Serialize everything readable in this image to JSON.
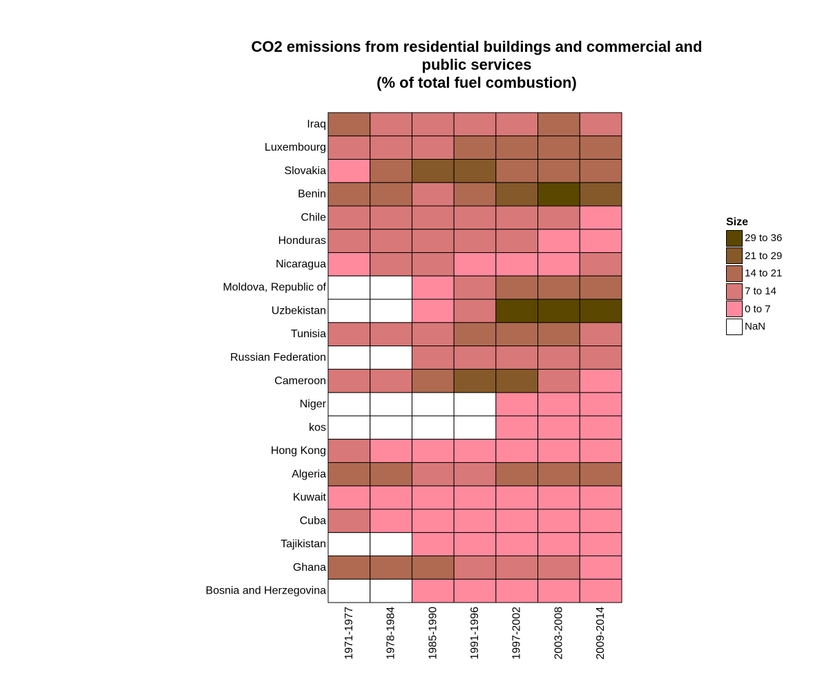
{
  "chart_data": {
    "type": "heatmap",
    "title_lines": [
      "CO2 emissions from residential buildings and commercial and",
      "public services",
      "(% of total fuel combustion)"
    ],
    "x_categories": [
      "1971-1977",
      "1978-1984",
      "1985-1990",
      "1991-1996",
      "1997-2002",
      "2003-2008",
      "2009-2014"
    ],
    "y_categories": [
      "Iraq",
      "Luxembourg",
      "Slovakia",
      "Benin",
      "Chile",
      "Honduras",
      "Nicaragua",
      "Moldova, Republic of",
      "Uzbekistan",
      "Tunisia",
      "Russian Federation",
      "Cameroon",
      "Niger",
      "kos",
      "Hong Kong",
      "Algeria",
      "Kuwait",
      "Cuba",
      "Tajikistan",
      "Ghana",
      "Bosnia and Herzegovina"
    ],
    "legend": {
      "title": "Size",
      "placement": "right",
      "bins": [
        {
          "label": "29 to 36",
          "color": "#5c4700"
        },
        {
          "label": "21 to 29",
          "color": "#86592a"
        },
        {
          "label": "14 to 21",
          "color": "#b06a52"
        },
        {
          "label": "7 to 14",
          "color": "#d97878"
        },
        {
          "label": "0 to 7",
          "color": "#ff8a9e"
        },
        {
          "label": "NaN",
          "color": "#ffffff"
        }
      ]
    },
    "cells": [
      [
        "14 to 21",
        "7 to 14",
        "7 to 14",
        "7 to 14",
        "7 to 14",
        "14 to 21",
        "7 to 14"
      ],
      [
        "7 to 14",
        "7 to 14",
        "7 to 14",
        "14 to 21",
        "14 to 21",
        "14 to 21",
        "14 to 21"
      ],
      [
        "0 to 7",
        "14 to 21",
        "21 to 29",
        "21 to 29",
        "14 to 21",
        "14 to 21",
        "14 to 21"
      ],
      [
        "14 to 21",
        "14 to 21",
        "7 to 14",
        "14 to 21",
        "21 to 29",
        "29 to 36",
        "21 to 29"
      ],
      [
        "7 to 14",
        "7 to 14",
        "7 to 14",
        "7 to 14",
        "7 to 14",
        "7 to 14",
        "0 to 7"
      ],
      [
        "7 to 14",
        "7 to 14",
        "7 to 14",
        "7 to 14",
        "7 to 14",
        "0 to 7",
        "0 to 7"
      ],
      [
        "0 to 7",
        "7 to 14",
        "7 to 14",
        "0 to 7",
        "0 to 7",
        "0 to 7",
        "7 to 14"
      ],
      [
        "NaN",
        "NaN",
        "0 to 7",
        "7 to 14",
        "14 to 21",
        "14 to 21",
        "14 to 21"
      ],
      [
        "NaN",
        "NaN",
        "0 to 7",
        "7 to 14",
        "29 to 36",
        "29 to 36",
        "29 to 36"
      ],
      [
        "7 to 14",
        "7 to 14",
        "7 to 14",
        "14 to 21",
        "14 to 21",
        "14 to 21",
        "7 to 14"
      ],
      [
        "NaN",
        "NaN",
        "7 to 14",
        "7 to 14",
        "7 to 14",
        "7 to 14",
        "7 to 14"
      ],
      [
        "7 to 14",
        "7 to 14",
        "14 to 21",
        "21 to 29",
        "21 to 29",
        "7 to 14",
        "0 to 7"
      ],
      [
        "NaN",
        "NaN",
        "NaN",
        "NaN",
        "0 to 7",
        "0 to 7",
        "0 to 7"
      ],
      [
        "NaN",
        "NaN",
        "NaN",
        "NaN",
        "0 to 7",
        "0 to 7",
        "0 to 7"
      ],
      [
        "7 to 14",
        "0 to 7",
        "0 to 7",
        "0 to 7",
        "0 to 7",
        "0 to 7",
        "0 to 7"
      ],
      [
        "14 to 21",
        "14 to 21",
        "7 to 14",
        "7 to 14",
        "14 to 21",
        "14 to 21",
        "14 to 21"
      ],
      [
        "0 to 7",
        "0 to 7",
        "0 to 7",
        "0 to 7",
        "0 to 7",
        "0 to 7",
        "0 to 7"
      ],
      [
        "7 to 14",
        "0 to 7",
        "0 to 7",
        "0 to 7",
        "0 to 7",
        "0 to 7",
        "0 to 7"
      ],
      [
        "NaN",
        "NaN",
        "0 to 7",
        "0 to 7",
        "0 to 7",
        "0 to 7",
        "0 to 7"
      ],
      [
        "14 to 21",
        "14 to 21",
        "14 to 21",
        "7 to 14",
        "7 to 14",
        "7 to 14",
        "0 to 7"
      ],
      [
        "NaN",
        "NaN",
        "0 to 7",
        "0 to 7",
        "0 to 7",
        "0 to 7",
        "0 to 7"
      ]
    ]
  }
}
